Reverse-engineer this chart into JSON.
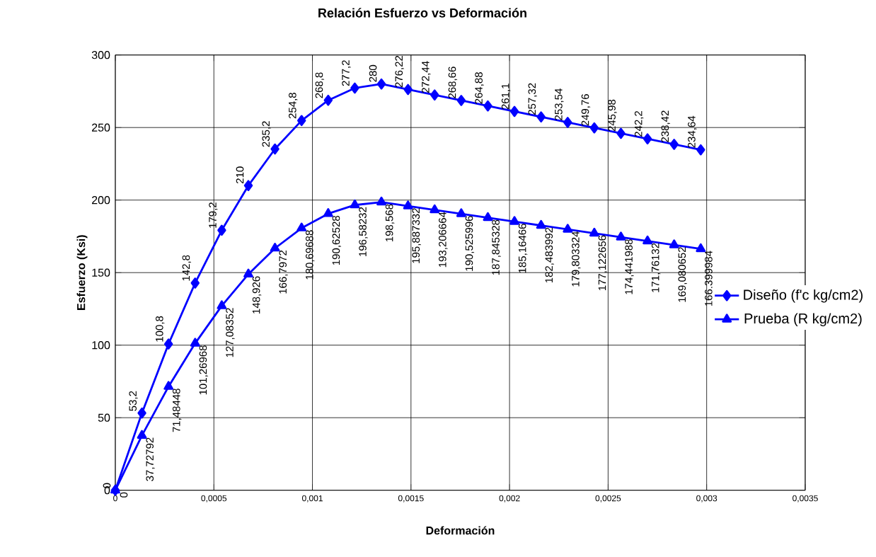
{
  "chart_data": {
    "type": "line",
    "title": "Relación Esfuerzo vs Deformación",
    "xlabel": "Deformación",
    "ylabel": "Esfuerzo (Ksi)",
    "x": [
      0,
      0.000135,
      0.00027,
      0.000405,
      0.00054,
      0.000675,
      0.00081,
      0.000945,
      0.00108,
      0.001215,
      0.00135,
      0.001485,
      0.00162,
      0.001755,
      0.00189,
      0.002025,
      0.00216,
      0.002295,
      0.00243,
      0.002565,
      0.0027,
      0.002835,
      0.00297
    ],
    "xlim": [
      0,
      0.0035
    ],
    "xticks": [
      0,
      {
        "value": 0.0005,
        "label": "0,0005"
      },
      {
        "value": 0.001,
        "label": "0,001"
      },
      {
        "value": 0.0015,
        "label": "0,0015"
      },
      {
        "value": 0.002,
        "label": "0,002"
      },
      {
        "value": 0.0025,
        "label": "0,0025"
      },
      {
        "value": 0.003,
        "label": "0,003"
      },
      {
        "value": 0.0035,
        "label": "0,0035"
      }
    ],
    "ylim": [
      0,
      300
    ],
    "yticks": [
      0,
      50,
      100,
      150,
      200,
      250,
      300
    ],
    "grid": true,
    "legend": "right",
    "line_style": "solid",
    "series": [
      {
        "name": "Diseño (f'c kg/cm2)",
        "color": "#0000ff",
        "marker": "diamond",
        "values": [
          0,
          53.2,
          100.8,
          142.8,
          179.2,
          210,
          235.2,
          254.8,
          268.8,
          277.2,
          280,
          276.22,
          272.44,
          268.66,
          264.88,
          261.1,
          257.32,
          253.54,
          249.76,
          245.98,
          242.2,
          238.42,
          234.64
        ],
        "value_labels": [
          "0",
          "53,2",
          "100,8",
          "142,8",
          "179,2",
          "210",
          "235,2",
          "254,8",
          "268,8",
          "277,2",
          "280",
          "276,22",
          "272,44",
          "268,66",
          "264,88",
          "261,1",
          "257,32",
          "253,54",
          "249,76",
          "245,98",
          "242,2",
          "238,42",
          "234,64"
        ]
      },
      {
        "name": "Prueba (R kg/cm2)",
        "color": "#0000ff",
        "marker": "triangle",
        "values": [
          0,
          37.72792,
          71.48448,
          101.26968,
          127.08352,
          148.926,
          166.7972,
          180.69688,
          190.62528,
          196.58232,
          198.568,
          195.887332,
          193.206664,
          190.525996,
          187.845328,
          185.16466,
          182.483992,
          179.803324,
          177.122656,
          174.441988,
          171.76132,
          169.080652,
          166.399984
        ],
        "value_labels": [
          "0",
          "37,72792",
          "71,48448",
          "101,26968",
          "127,08352",
          "148,926",
          "166,7972",
          "180,69688",
          "190,62528",
          "196,58232",
          "198,568",
          "195,887332",
          "193,206664",
          "190,525996",
          "187,845328",
          "185,16466",
          "182,483992",
          "179,803324",
          "177,122656",
          "174,441988",
          "171,76132",
          "169,080652",
          "166,399984"
        ]
      }
    ]
  }
}
